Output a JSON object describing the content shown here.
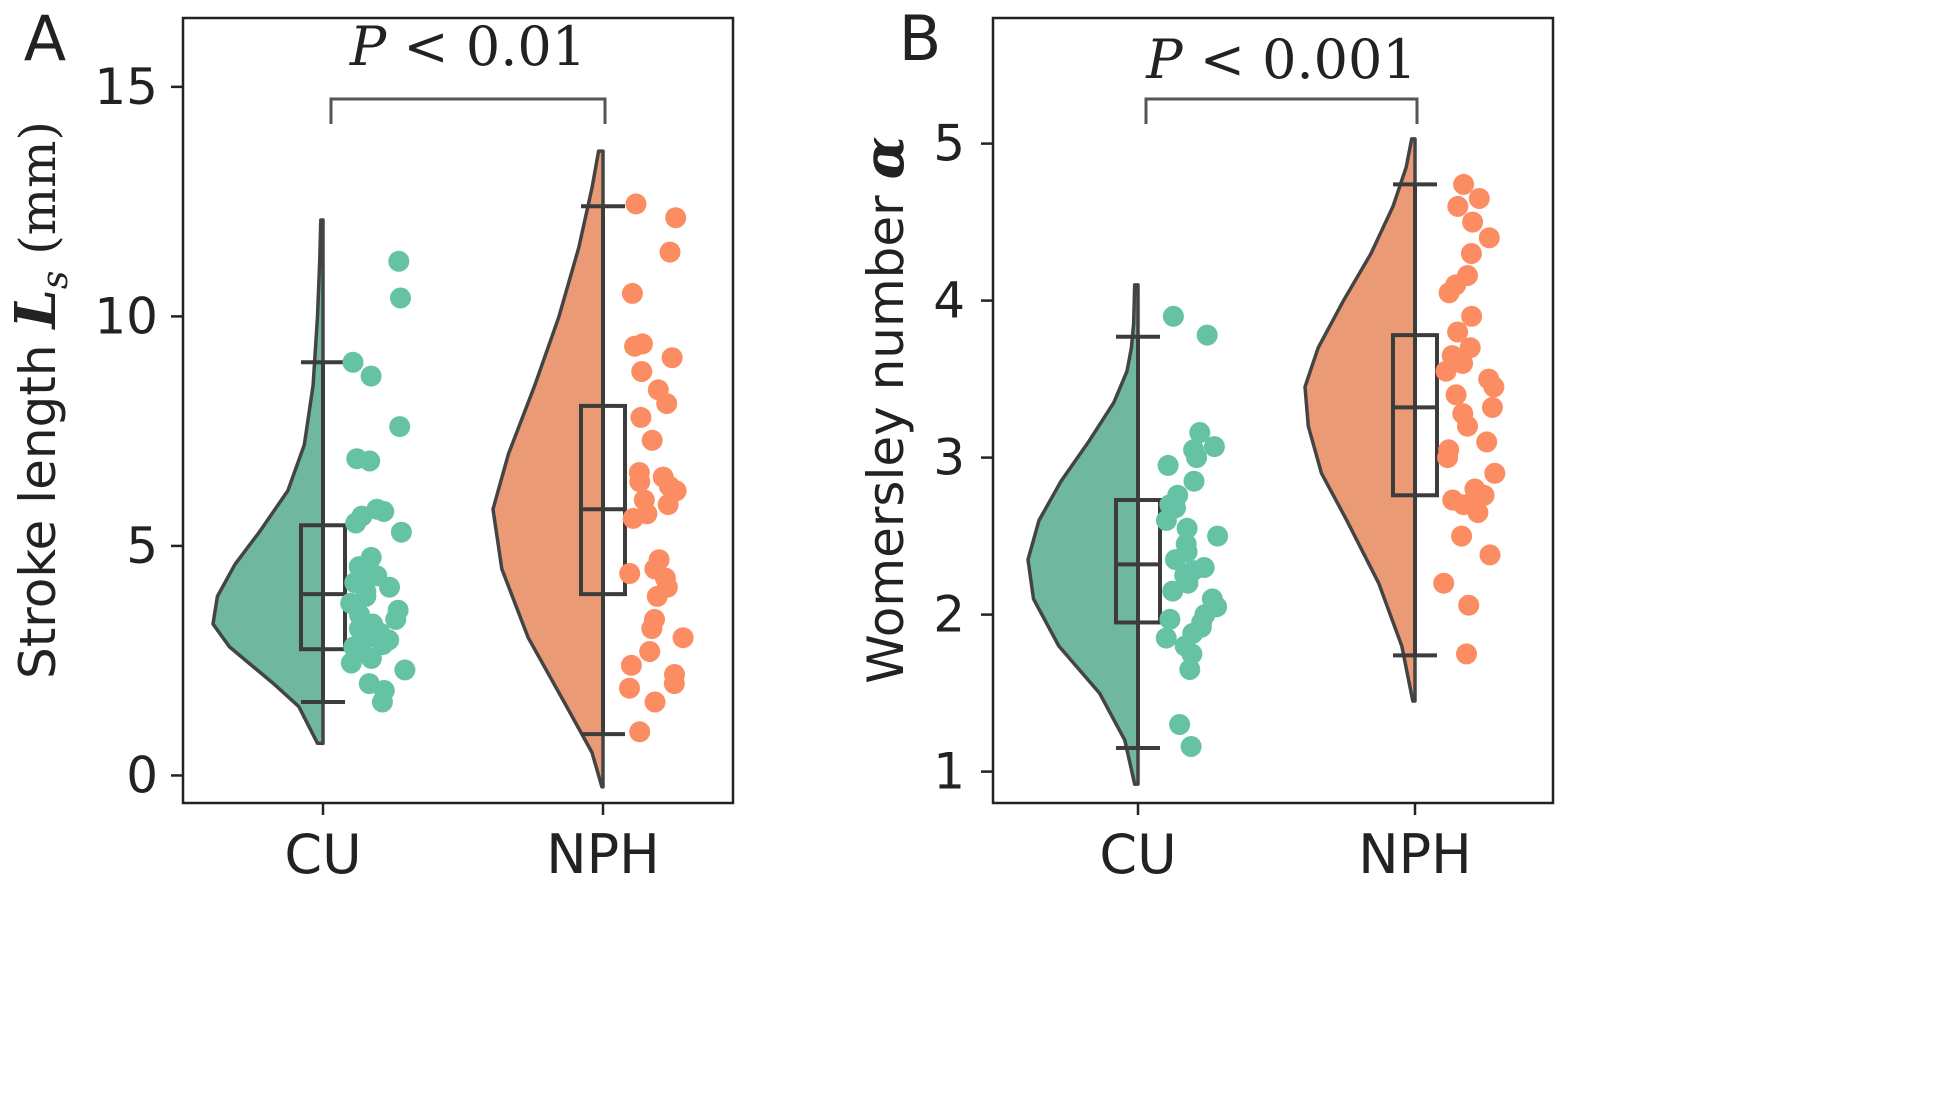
{
  "chart_data": [
    {
      "panel_label": "A",
      "type": "raincloud",
      "ylabel_text": "Stroke length ",
      "ylabel_symbol": "L",
      "ylabel_subscript": "s",
      "ylabel_units": " (mm)",
      "ylim": [
        -0.6,
        16.5
      ],
      "yticks": [
        0,
        5,
        10,
        15
      ],
      "significance": {
        "p_symbol": "P",
        "p_rest": " < 0.01"
      },
      "categories": [
        "CU",
        "NPH"
      ],
      "series": [
        {
          "name": "CU",
          "color": "#6fb79f",
          "point_color": "#66c2a5",
          "violin": [
            [
              0.7,
              0.05
            ],
            [
              1.5,
              0.22
            ],
            [
              2.0,
              0.45
            ],
            [
              2.8,
              0.85
            ],
            [
              3.3,
              1.0
            ],
            [
              3.9,
              0.96
            ],
            [
              4.6,
              0.8
            ],
            [
              5.3,
              0.58
            ],
            [
              6.2,
              0.32
            ],
            [
              7.2,
              0.17
            ],
            [
              8.5,
              0.09
            ],
            [
              10.0,
              0.05
            ],
            [
              11.2,
              0.03
            ],
            [
              12.1,
              0.02
            ]
          ],
          "box": {
            "whisker_low": 1.6,
            "q1": 2.75,
            "median": 3.95,
            "q3": 5.45,
            "whisker_high": 9.0
          },
          "points": [
            11.2,
            10.4,
            9.0,
            8.7,
            7.6,
            6.9,
            6.85,
            5.8,
            5.75,
            5.65,
            5.5,
            5.3,
            4.75,
            4.55,
            4.35,
            4.25,
            4.2,
            4.1,
            4.0,
            3.9,
            3.75,
            3.6,
            3.5,
            3.4,
            3.3,
            3.2,
            3.1,
            3.0,
            2.95,
            2.85,
            2.8,
            2.7,
            2.55,
            2.45,
            2.3,
            2.0,
            1.85,
            1.6
          ]
        },
        {
          "name": "NPH",
          "color": "#eb9a76",
          "point_color": "#fc8d62",
          "violin": [
            [
              -0.25,
              0.01
            ],
            [
              0.5,
              0.1
            ],
            [
              1.5,
              0.33
            ],
            [
              3.0,
              0.68
            ],
            [
              4.5,
              0.92
            ],
            [
              5.8,
              1.0
            ],
            [
              7.0,
              0.86
            ],
            [
              8.5,
              0.62
            ],
            [
              10.0,
              0.4
            ],
            [
              11.5,
              0.22
            ],
            [
              12.8,
              0.1
            ],
            [
              13.6,
              0.04
            ]
          ],
          "box": {
            "whisker_low": 0.9,
            "q1": 3.95,
            "median": 5.8,
            "q3": 8.05,
            "whisker_high": 12.4
          },
          "points": [
            12.45,
            12.15,
            11.4,
            10.5,
            9.4,
            9.35,
            9.1,
            8.8,
            8.4,
            8.1,
            7.8,
            7.3,
            6.6,
            6.5,
            6.4,
            6.3,
            6.2,
            6.0,
            5.9,
            5.7,
            5.6,
            4.7,
            4.5,
            4.4,
            4.3,
            4.1,
            3.9,
            3.4,
            3.2,
            3.0,
            2.7,
            2.4,
            2.2,
            2.0,
            1.9,
            1.6,
            0.95
          ]
        }
      ]
    },
    {
      "panel_label": "B",
      "type": "raincloud",
      "ylabel_text": "Womersley number ",
      "ylabel_symbol": "α",
      "ylim": [
        0.8,
        5.8
      ],
      "yticks": [
        1,
        2,
        3,
        4,
        5
      ],
      "significance": {
        "p_symbol": "P",
        "p_rest": " < 0.001"
      },
      "categories": [
        "CU",
        "NPH"
      ],
      "series": [
        {
          "name": "CU",
          "color": "#6fb79f",
          "point_color": "#66c2a5",
          "violin": [
            [
              0.92,
              0.03
            ],
            [
              1.2,
              0.12
            ],
            [
              1.5,
              0.35
            ],
            [
              1.8,
              0.72
            ],
            [
              2.1,
              0.95
            ],
            [
              2.35,
              1.0
            ],
            [
              2.6,
              0.9
            ],
            [
              2.85,
              0.7
            ],
            [
              3.1,
              0.45
            ],
            [
              3.35,
              0.22
            ],
            [
              3.55,
              0.1
            ],
            [
              3.7,
              0.06
            ],
            [
              3.85,
              0.04
            ],
            [
              4.1,
              0.03
            ]
          ],
          "box": {
            "whisker_low": 1.15,
            "q1": 1.95,
            "median": 2.32,
            "q3": 2.73,
            "whisker_high": 3.77
          },
          "points": [
            3.9,
            3.78,
            3.16,
            3.07,
            3.05,
            3.0,
            2.95,
            2.85,
            2.76,
            2.7,
            2.68,
            2.6,
            2.55,
            2.5,
            2.45,
            2.4,
            2.35,
            2.3,
            2.28,
            2.25,
            2.2,
            2.15,
            2.1,
            2.05,
            2.0,
            1.97,
            1.95,
            1.92,
            1.88,
            1.85,
            1.8,
            1.75,
            1.65,
            1.3,
            1.16
          ]
        },
        {
          "name": "NPH",
          "color": "#eb9a76",
          "point_color": "#fc8d62",
          "violin": [
            [
              1.45,
              0.02
            ],
            [
              1.8,
              0.12
            ],
            [
              2.2,
              0.33
            ],
            [
              2.6,
              0.62
            ],
            [
              2.9,
              0.85
            ],
            [
              3.2,
              0.97
            ],
            [
              3.45,
              1.0
            ],
            [
              3.7,
              0.88
            ],
            [
              4.0,
              0.65
            ],
            [
              4.3,
              0.4
            ],
            [
              4.6,
              0.2
            ],
            [
              4.85,
              0.08
            ],
            [
              5.03,
              0.03
            ]
          ],
          "box": {
            "whisker_low": 1.74,
            "q1": 2.76,
            "median": 3.32,
            "q3": 3.78,
            "whisker_high": 4.74
          },
          "points": [
            4.74,
            4.65,
            4.6,
            4.5,
            4.4,
            4.3,
            4.16,
            4.1,
            4.05,
            3.9,
            3.8,
            3.7,
            3.65,
            3.6,
            3.55,
            3.5,
            3.45,
            3.4,
            3.32,
            3.28,
            3.2,
            3.1,
            3.05,
            3.0,
            2.9,
            2.8,
            2.78,
            2.76,
            2.73,
            2.7,
            2.65,
            2.5,
            2.38,
            2.2,
            2.06,
            1.75
          ]
        }
      ]
    }
  ]
}
